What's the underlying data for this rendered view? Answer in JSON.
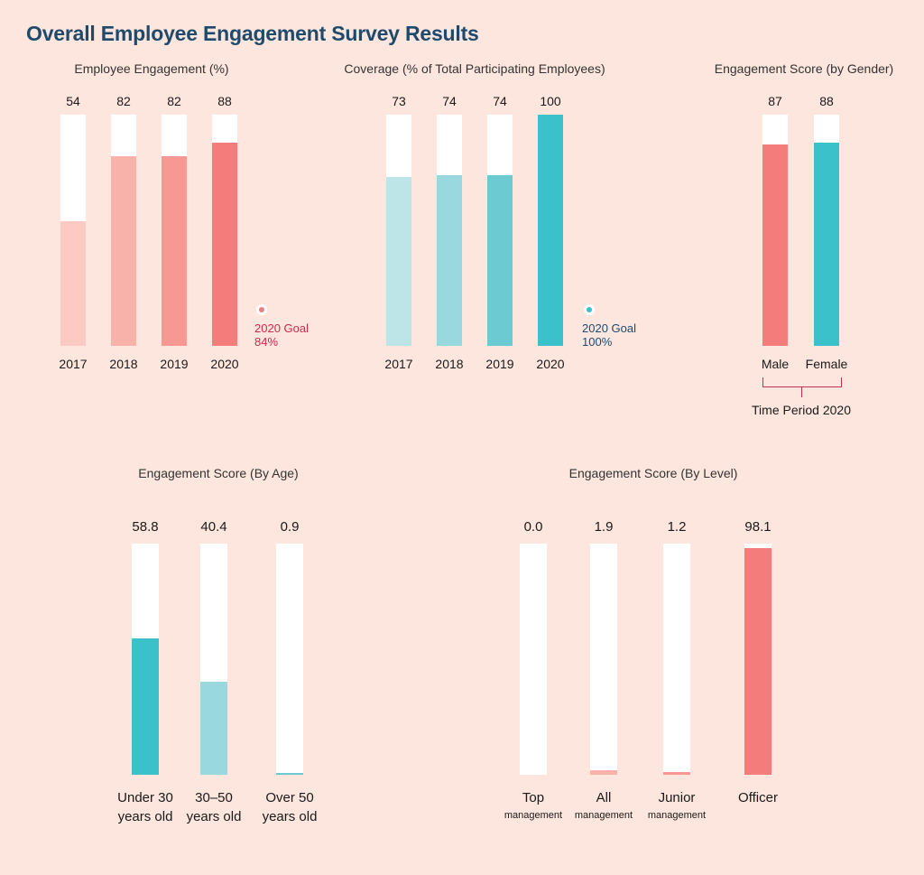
{
  "title": "Overall Employee Engagement Survey Results",
  "chart_data": [
    {
      "id": "engagement",
      "type": "bar",
      "title": "Employee Engagement (%)",
      "categories": [
        "2017",
        "2018",
        "2019",
        "2020"
      ],
      "values": [
        54,
        82,
        82,
        88
      ],
      "value_labels": [
        "54",
        "82",
        "82",
        "88"
      ],
      "ylim": [
        0,
        100
      ],
      "colors": [
        "#fccac2",
        "#f9b2a9",
        "#f79892",
        "#f47d7c"
      ],
      "goal": {
        "line1": "2020 Goal",
        "line2": "84%",
        "color": "#d0284b",
        "dot": "#e88183"
      }
    },
    {
      "id": "coverage",
      "type": "bar",
      "title": "Coverage (% of Total Participating Employees)",
      "categories": [
        "2017",
        "2018",
        "2019",
        "2020"
      ],
      "values": [
        73,
        74,
        74,
        100
      ],
      "value_labels": [
        "73",
        "74",
        "74",
        "100"
      ],
      "ylim": [
        0,
        100
      ],
      "colors": [
        "#bde4e6",
        "#98d8de",
        "#6ccbd2",
        "#3bc1c9"
      ],
      "goal": {
        "line1": "2020 Goal",
        "line2": "100%",
        "color": "#1f4a6b",
        "dot": "#3bc1c9"
      }
    },
    {
      "id": "gender",
      "type": "bar",
      "title": "Engagement Score (by Gender)",
      "categories": [
        "Male",
        "Female"
      ],
      "values": [
        87,
        88
      ],
      "value_labels": [
        "87",
        "88"
      ],
      "ylim": [
        0,
        100
      ],
      "colors": [
        "#f47d7c",
        "#3bc1c9"
      ],
      "group_label": "Time Period 2020"
    },
    {
      "id": "age",
      "type": "bar",
      "title": "Engagement Score (By Age)",
      "categories": [
        [
          "Under 30",
          "years old"
        ],
        [
          "30–50",
          "years old"
        ],
        [
          "Over 50",
          "years old"
        ]
      ],
      "values": [
        58.8,
        40.4,
        0.9
      ],
      "value_labels": [
        "58.8",
        "40.4",
        "0.9"
      ],
      "ylim": [
        0,
        100
      ],
      "colors": [
        "#3bc1c9",
        "#98d8de",
        "#6ccbd2"
      ]
    },
    {
      "id": "level",
      "type": "bar",
      "title": "Engagement Score (By Level)",
      "categories": [
        [
          "Top",
          "management"
        ],
        [
          "All",
          "management"
        ],
        [
          "Junior",
          "management"
        ],
        [
          "Officer",
          ""
        ]
      ],
      "values": [
        0.0,
        1.9,
        1.2,
        98.1
      ],
      "value_labels": [
        "0.0",
        "1.9",
        "1.2",
        "98.1"
      ],
      "ylim": [
        0,
        100
      ],
      "colors": [
        "#f9b2a9",
        "#f9b2a9",
        "#f79892",
        "#f47d7c"
      ]
    }
  ]
}
